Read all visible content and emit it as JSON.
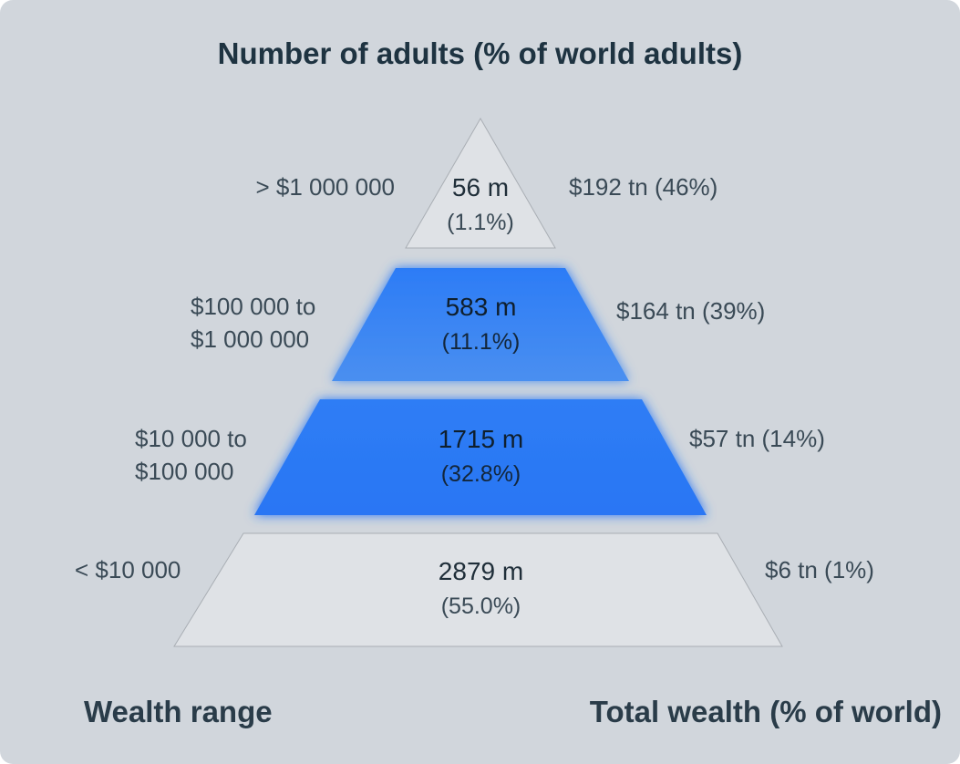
{
  "title": "Number of adults (% of world adults)",
  "footer": {
    "left": "Wealth range",
    "right": "Total wealth (% of world)"
  },
  "colors": {
    "background": "#d1d6dc",
    "tier_grey": "#dfe2e6",
    "tier_blue": "#2f7df5",
    "tier_blue_light": "#3b87f2"
  },
  "tiers": [
    {
      "range": "> $1 000 000",
      "adults": "56 m",
      "share": "(1.1%)",
      "wealth": "$192 tn (46%)",
      "highlight": false
    },
    {
      "range_line1": "$100 000 to",
      "range_line2": "$1 000 000",
      "adults": "583 m",
      "share": "(11.1%)",
      "wealth": "$164 tn (39%)",
      "highlight": true
    },
    {
      "range_line1": "$10 000 to",
      "range_line2": "$100 000",
      "adults": "1715 m",
      "share": "(32.8%)",
      "wealth": "$57 tn (14%)",
      "highlight": true
    },
    {
      "range": "< $10 000",
      "adults": "2879 m",
      "share": "(55.0%)",
      "wealth": "$6 tn (1%)",
      "highlight": false
    }
  ]
}
